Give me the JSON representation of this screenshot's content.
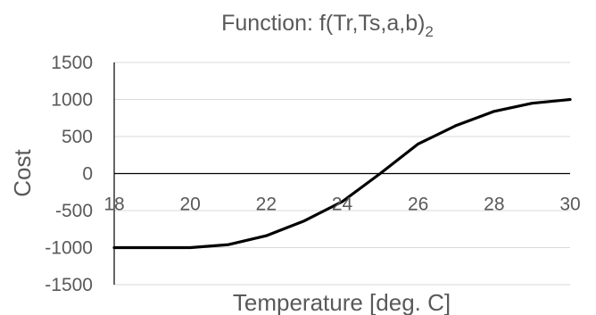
{
  "chart_data": {
    "type": "line",
    "title": "Function: f(Tr,Ts,a,b)",
    "title_subscript": "2",
    "xlabel": "Temperature [deg. C]",
    "ylabel": "Cost",
    "xlim": [
      18,
      30
    ],
    "ylim": [
      -1500,
      1500
    ],
    "x_ticks": [
      18,
      20,
      22,
      24,
      26,
      28,
      30
    ],
    "y_ticks": [
      1500,
      1000,
      500,
      0,
      -500,
      -1000,
      -1500
    ],
    "grid": true,
    "legend": "none",
    "series": [
      {
        "color": "#000000",
        "x": [
          18,
          19,
          20,
          21,
          22,
          23,
          24,
          25,
          26,
          27,
          28,
          29,
          30
        ],
        "y": [
          -1000,
          -1000,
          -1000,
          -960,
          -840,
          -640,
          -380,
          0,
          400,
          650,
          840,
          950,
          1000
        ]
      }
    ]
  }
}
